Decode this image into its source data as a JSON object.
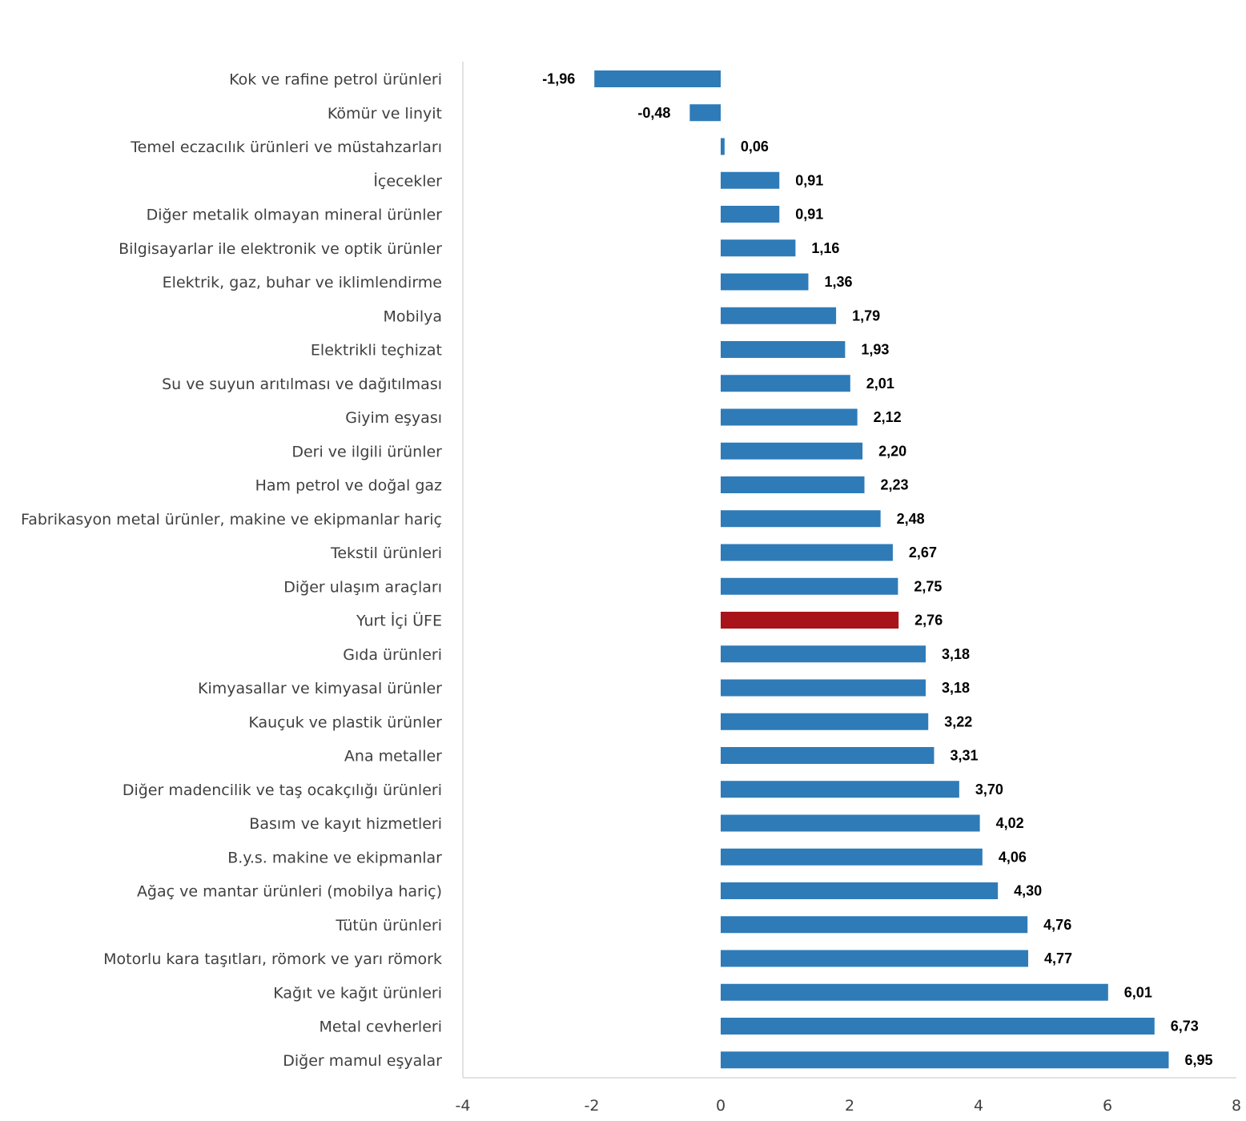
{
  "chart_data": {
    "type": "bar",
    "orientation": "horizontal",
    "categories": [
      "Kok ve rafine petrol ürünleri",
      "Kömür ve linyit",
      "Temel eczacılık ürünleri ve müstahzarları",
      "İçecekler",
      "Diğer metalik olmayan mineral ürünler",
      "Bilgisayarlar ile elektronik ve optik ürünler",
      "Elektrik, gaz, buhar ve iklimlendirme",
      "Mobilya",
      "Elektrikli teçhizat",
      "Su ve suyun arıtılması ve dağıtılması",
      "Giyim eşyası",
      "Deri ve ilgili ürünler",
      "Ham petrol ve doğal gaz",
      "Fabrikasyon metal ürünler, makine ve ekipmanlar hariç",
      "Tekstil ürünleri",
      "Diğer ulaşım araçları",
      "Yurt İçi ÜFE",
      "Gıda ürünleri",
      "Kimyasallar ve kimyasal ürünler",
      "Kauçuk ve plastik ürünler",
      "Ana metaller",
      "Diğer madencilik ve taş ocakçılığı ürünleri",
      "Basım ve kayıt hizmetleri",
      "B.y.s. makine ve ekipmanlar",
      "Ağaç ve mantar ürünleri (mobilya hariç)",
      "Tütün ürünleri",
      "Motorlu kara taşıtları, römork ve yarı römork",
      "Kağıt ve kağıt ürünleri",
      "Metal cevherleri",
      "Diğer mamul eşyalar"
    ],
    "values": [
      -1.96,
      -0.48,
      0.06,
      0.91,
      0.91,
      1.16,
      1.36,
      1.79,
      1.93,
      2.01,
      2.12,
      2.2,
      2.23,
      2.48,
      2.67,
      2.75,
      2.76,
      3.18,
      3.18,
      3.22,
      3.31,
      3.7,
      4.02,
      4.06,
      4.3,
      4.76,
      4.77,
      6.01,
      6.73,
      6.95
    ],
    "value_labels": [
      "-1,96",
      "-0,48",
      "0,06",
      "0,91",
      "0,91",
      "1,16",
      "1,36",
      "1,79",
      "1,93",
      "2,01",
      "2,12",
      "2,20",
      "2,23",
      "2,48",
      "2,67",
      "2,75",
      "2,76",
      "3,18",
      "3,18",
      "3,22",
      "3,31",
      "3,70",
      "4,02",
      "4,06",
      "4,30",
      "4,76",
      "4,77",
      "6,01",
      "6,73",
      "6,95"
    ],
    "xlim": [
      -4,
      8
    ],
    "x_ticks": [
      -4,
      -2,
      0,
      2,
      4,
      6,
      8
    ],
    "title": "",
    "xlabel": "",
    "ylabel": "",
    "grid": false,
    "legend": "none",
    "colors": {
      "bar": "#2E7BB8",
      "highlight": "#A8141A"
    },
    "highlight_category": "Yurt İçi ÜFE"
  }
}
